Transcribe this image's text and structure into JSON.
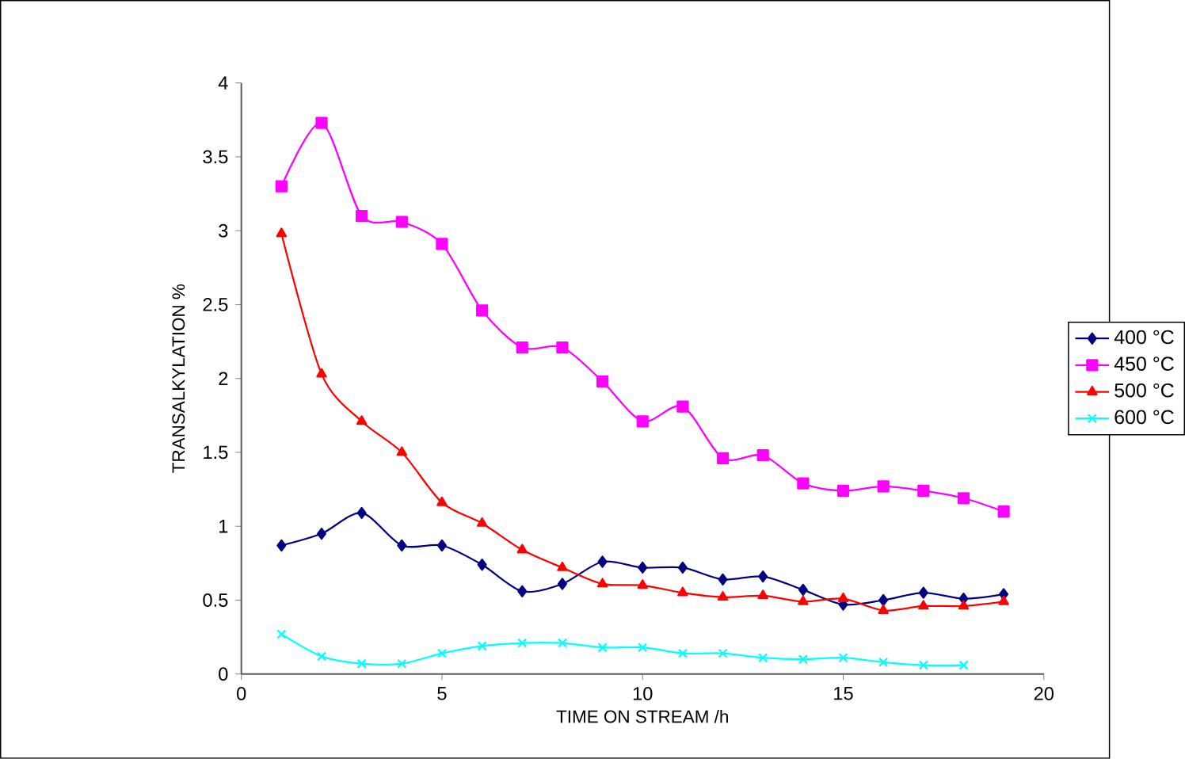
{
  "chart_data": {
    "type": "line",
    "xlabel": "TIME ON STREAM /h",
    "ylabel": "TRANSALKYLATION %",
    "xlim": [
      0,
      20
    ],
    "xticks": [
      0,
      5,
      10,
      15,
      20
    ],
    "ylim": [
      0,
      4
    ],
    "yticks": [
      0,
      0.5,
      1,
      1.5,
      2,
      2.5,
      3,
      3.5,
      4
    ],
    "grid": false,
    "legend": "right",
    "line_style": "solid",
    "series": [
      {
        "name": "400 °C",
        "color": "#000080",
        "marker": "diamond",
        "x": [
          1,
          2,
          3,
          4,
          5,
          6,
          7,
          8,
          9,
          10,
          11,
          12,
          13,
          14,
          15,
          16,
          17,
          18,
          19
        ],
        "values": [
          0.87,
          0.95,
          1.09,
          0.87,
          0.87,
          0.74,
          0.56,
          0.61,
          0.76,
          0.72,
          0.72,
          0.64,
          0.66,
          0.57,
          0.47,
          0.5,
          0.55,
          0.51,
          0.54
        ]
      },
      {
        "name": "450 °C",
        "color": "#ff00ff",
        "marker": "square",
        "x": [
          1,
          2,
          3,
          4,
          5,
          6,
          7,
          8,
          9,
          10,
          11,
          12,
          13,
          14,
          15,
          16,
          17,
          18,
          19
        ],
        "values": [
          3.3,
          3.73,
          3.1,
          3.06,
          2.91,
          2.46,
          2.21,
          2.21,
          1.98,
          1.71,
          1.81,
          1.46,
          1.48,
          1.29,
          1.24,
          1.27,
          1.24,
          1.19,
          1.1
        ]
      },
      {
        "name": "500 °C",
        "color": "#ff0000",
        "marker": "triangle",
        "x": [
          1,
          2,
          3,
          4,
          5,
          6,
          7,
          8,
          9,
          10,
          11,
          12,
          13,
          14,
          15,
          16,
          17,
          18,
          19
        ],
        "values": [
          2.98,
          2.03,
          1.71,
          1.5,
          1.16,
          1.02,
          0.84,
          0.72,
          0.61,
          0.6,
          0.55,
          0.52,
          0.53,
          0.49,
          0.51,
          0.43,
          0.46,
          0.46,
          0.49
        ]
      },
      {
        "name": "600 °C",
        "color": "#00ffff",
        "marker": "cross",
        "x": [
          1,
          2,
          3,
          4,
          5,
          6,
          7,
          8,
          9,
          10,
          11,
          12,
          13,
          14,
          15,
          16,
          17,
          18
        ],
        "values": [
          0.27,
          0.12,
          0.07,
          0.07,
          0.14,
          0.19,
          0.21,
          0.21,
          0.18,
          0.18,
          0.14,
          0.14,
          0.11,
          0.1,
          0.11,
          0.08,
          0.06,
          0.06
        ]
      }
    ]
  }
}
